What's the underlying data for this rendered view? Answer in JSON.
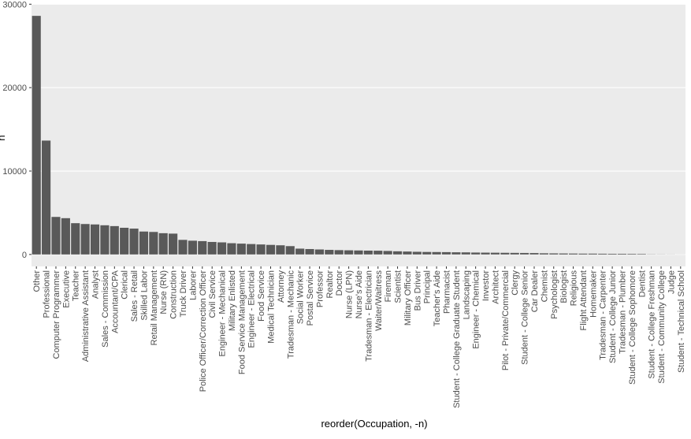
{
  "chart_data": {
    "type": "bar",
    "x_label": "reorder(Occupation, -n)",
    "y_label": "n",
    "color": "#595959",
    "grid": true,
    "ylim": [
      -1430,
      30030
    ],
    "yticks": [
      0,
      10000,
      20000,
      30000
    ],
    "categories": [
      "Other",
      "Professional",
      "Computer Programmer",
      "Executive",
      "Teacher",
      "Administrative Assistant",
      "Analyst",
      "Sales - Commission",
      "Accountant/CPA",
      "Clerical",
      "Sales - Retail",
      "Skilled Labor",
      "Retail Management",
      "Nurse (RN)",
      "Construction",
      "Truck Driver",
      "Laborer",
      "Police Officer/Correction Officer",
      "Civil Service",
      "Engineer - Mechanical",
      "Military Enlisted",
      "Food Service Management",
      "Engineer - Electrical",
      "Food Service",
      "Medical Technician",
      "Attorney",
      "Tradesman - Mechanic",
      "Social Worker",
      "Postal Service",
      "Professor",
      "Realtor",
      "Doctor",
      "Nurse (LPN)",
      "Nurse's Aide",
      "Tradesman - Electrician",
      "Waiter/Waitress",
      "Fireman",
      "Scientist",
      "Military Officer",
      "Bus Driver",
      "Principal",
      "Teacher's Aide",
      "Pharmacist",
      "Student - College Graduate Student",
      "Landscaping",
      "Engineer - Chemical",
      "Investor",
      "Architect",
      "Pilot - Private/Commercial",
      "Clergy",
      "Student - College Senior",
      "Car Dealer",
      "Chemist",
      "Psychologist",
      "Biologist",
      "Religious",
      "Flight Attendant",
      "Homemaker",
      "Tradesman - Carpenter",
      "Student - College Junior",
      "Tradesman - Plumber",
      "Student - College Sophomore",
      "Dentist",
      "Student - College Freshman",
      "Student - Community College",
      "Judge",
      "Student - Technical School"
    ],
    "values": [
      28600,
      13650,
      4500,
      4350,
      3750,
      3650,
      3600,
      3500,
      3400,
      3200,
      3100,
      2750,
      2700,
      2550,
      2500,
      1750,
      1650,
      1600,
      1500,
      1450,
      1350,
      1300,
      1250,
      1200,
      1150,
      1100,
      1000,
      700,
      650,
      600,
      550,
      520,
      500,
      480,
      460,
      450,
      420,
      380,
      350,
      320,
      300,
      290,
      280,
      260,
      250,
      230,
      220,
      210,
      200,
      190,
      180,
      170,
      140,
      130,
      120,
      110,
      100,
      100,
      90,
      80,
      80,
      70,
      60,
      20,
      15,
      10,
      5
    ]
  }
}
